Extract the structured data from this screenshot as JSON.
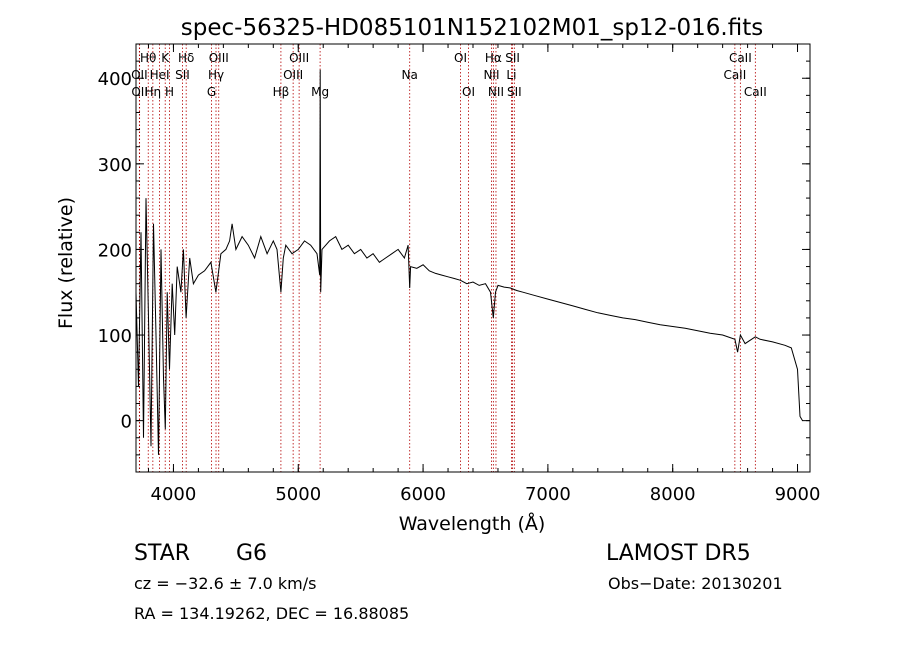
{
  "chart_data": {
    "type": "line",
    "title": "spec-56325-HD085101N152102M01_sp12-016.fits",
    "xlabel": "Wavelength (Å)",
    "ylabel": "Flux (relative)",
    "xlim": [
      3700,
      9100
    ],
    "ylim": [
      -60,
      440
    ],
    "xticks": [
      4000,
      5000,
      6000,
      7000,
      8000,
      9000
    ],
    "yticks": [
      0,
      100,
      200,
      300,
      400
    ],
    "grid": false,
    "series": [
      {
        "color": "#000000",
        "x": [
          3700,
          3720,
          3740,
          3760,
          3780,
          3800,
          3820,
          3840,
          3860,
          3880,
          3900,
          3920,
          3935,
          3950,
          3968,
          3990,
          4010,
          4030,
          4060,
          4080,
          4101,
          4130,
          4160,
          4200,
          4250,
          4300,
          4340,
          4380,
          4420,
          4450,
          4470,
          4500,
          4550,
          4600,
          4650,
          4700,
          4750,
          4800,
          4830,
          4861,
          4880,
          4900,
          4950,
          5000,
          5050,
          5100,
          5150,
          5172,
          5176,
          5180,
          5190,
          5250,
          5300,
          5350,
          5400,
          5450,
          5500,
          5550,
          5600,
          5650,
          5700,
          5750,
          5800,
          5850,
          5880,
          5893,
          5900,
          5950,
          6000,
          6050,
          6100,
          6150,
          6200,
          6250,
          6300,
          6350,
          6400,
          6450,
          6500,
          6540,
          6563,
          6580,
          6600,
          6650,
          6700,
          6750,
          6800,
          6900,
          7000,
          7100,
          7200,
          7300,
          7400,
          7500,
          7600,
          7700,
          7800,
          7900,
          8000,
          8100,
          8200,
          8300,
          8400,
          8498,
          8520,
          8542,
          8580,
          8662,
          8700,
          8800,
          8900,
          8950,
          9000,
          9020,
          9040
        ],
        "y": [
          150,
          40,
          220,
          -20,
          260,
          120,
          -30,
          230,
          100,
          -40,
          200,
          50,
          -10,
          150,
          60,
          160,
          100,
          180,
          150,
          200,
          120,
          190,
          160,
          170,
          175,
          185,
          150,
          195,
          200,
          210,
          230,
          200,
          215,
          205,
          190,
          215,
          195,
          210,
          200,
          150,
          190,
          205,
          195,
          200,
          210,
          205,
          195,
          170,
          410,
          150,
          200,
          210,
          215,
          200,
          205,
          195,
          200,
          190,
          195,
          185,
          190,
          195,
          200,
          190,
          205,
          155,
          180,
          178,
          182,
          175,
          172,
          170,
          168,
          166,
          164,
          160,
          162,
          158,
          160,
          150,
          120,
          150,
          158,
          156,
          155,
          152,
          150,
          146,
          142,
          138,
          134,
          130,
          126,
          123,
          120,
          118,
          115,
          112,
          110,
          108,
          105,
          102,
          100,
          95,
          80,
          100,
          90,
          98,
          95,
          92,
          88,
          85,
          60,
          5,
          0
        ]
      }
    ],
    "lines": [
      {
        "label": "Hθ",
        "wave": 3798,
        "row": 1
      },
      {
        "label": "OII",
        "wave": 3727,
        "row": 2
      },
      {
        "label": "OII",
        "wave": 3729,
        "row": 3
      },
      {
        "label": "Hη",
        "wave": 3835,
        "row": 3
      },
      {
        "label": "K",
        "wave": 3934,
        "row": 1
      },
      {
        "label": "HeI",
        "wave": 3889,
        "row": 2
      },
      {
        "label": "H",
        "wave": 3969,
        "row": 3
      },
      {
        "label": "Hδ",
        "wave": 4102,
        "row": 1
      },
      {
        "label": "SII",
        "wave": 4072,
        "row": 2
      },
      {
        "label": "OIII",
        "wave": 4363,
        "row": 1
      },
      {
        "label": "Hγ",
        "wave": 4341,
        "row": 2
      },
      {
        "label": "G",
        "wave": 4305,
        "row": 3
      },
      {
        "label": "Hβ",
        "wave": 4861,
        "row": 3
      },
      {
        "label": "OIII",
        "wave": 5007,
        "row": 1
      },
      {
        "label": "OIII",
        "wave": 4959,
        "row": 2
      },
      {
        "label": "Mg",
        "wave": 5175,
        "row": 3
      },
      {
        "label": "Na",
        "wave": 5893,
        "row": 2
      },
      {
        "label": "OI",
        "wave": 6300,
        "row": 1
      },
      {
        "label": "OI",
        "wave": 6364,
        "row": 3
      },
      {
        "label": "Hα",
        "wave": 6563,
        "row": 1
      },
      {
        "label": "NII",
        "wave": 6548,
        "row": 2
      },
      {
        "label": "NII",
        "wave": 6584,
        "row": 3
      },
      {
        "label": "SII",
        "wave": 6717,
        "row": 1
      },
      {
        "label": "Li",
        "wave": 6708,
        "row": 2
      },
      {
        "label": "SII",
        "wave": 6731,
        "row": 3
      },
      {
        "label": "CaII",
        "wave": 8542,
        "row": 1
      },
      {
        "label": "CaII",
        "wave": 8498,
        "row": 2
      },
      {
        "label": "CaII",
        "wave": 8662,
        "row": 3
      }
    ]
  },
  "info": {
    "object_class": "STAR",
    "subclass": "G6",
    "survey": "LAMOST DR5",
    "redshift": "cz = −32.6 ± 7.0 km/s",
    "obs_date": "Obs−Date: 20130201",
    "coords": "RA = 134.19262, DEC =  16.88085"
  }
}
